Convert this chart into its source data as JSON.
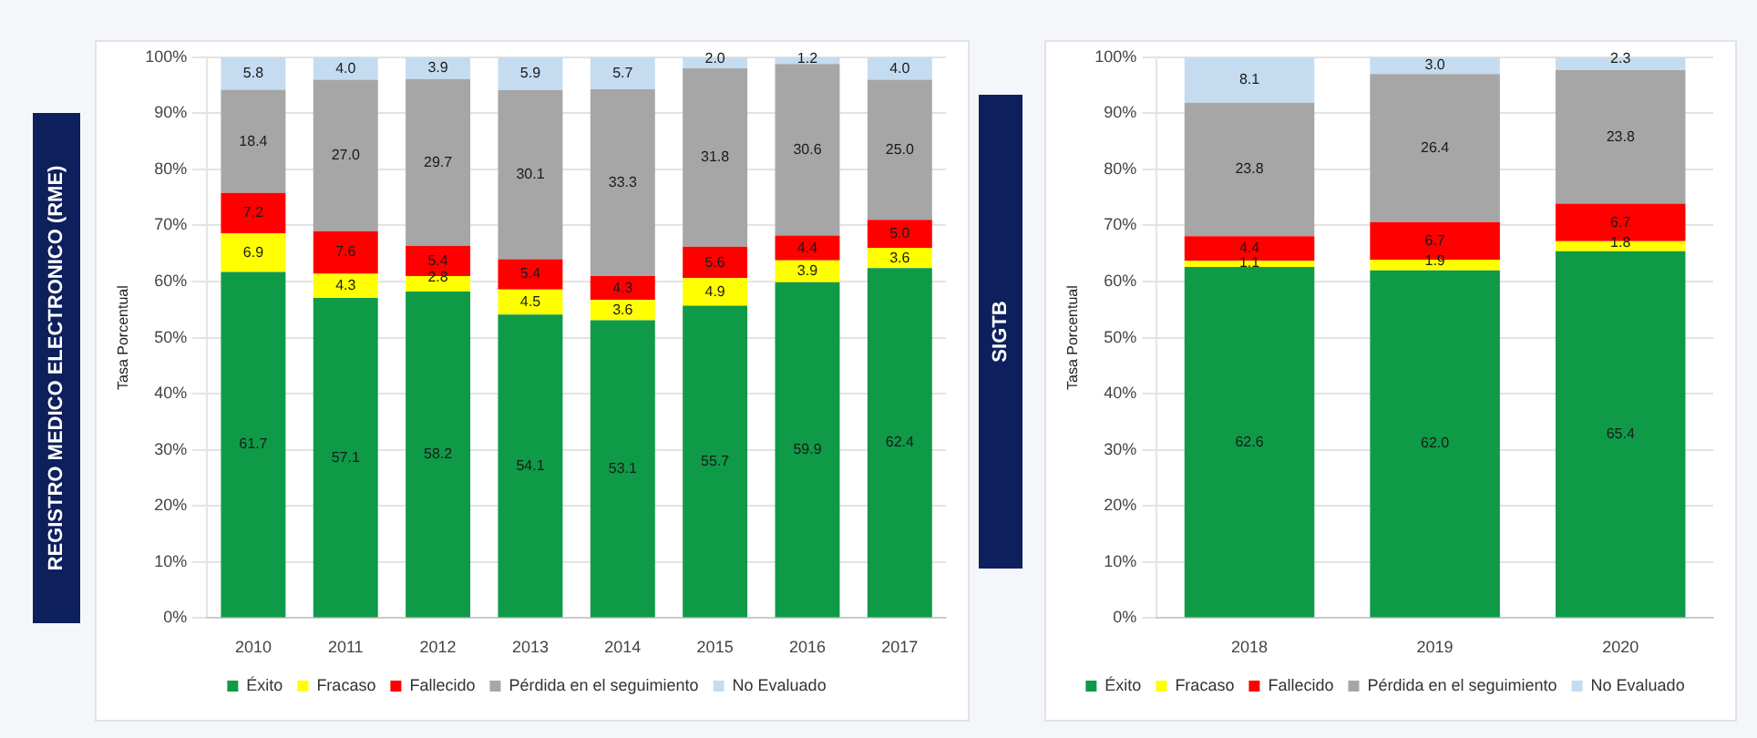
{
  "chart_data": [
    {
      "type": "bar",
      "stacked": true,
      "ylabel": "Tasa Porcentual",
      "annotations": [
        "REGISTRO MEDICO ELECTRONICO (RME)"
      ],
      "categories": [
        "2010",
        "2011",
        "2012",
        "2013",
        "2014",
        "2015",
        "2016",
        "2017"
      ],
      "series": [
        {
          "name": "Éxito",
          "color": "#0f9a48",
          "values": [
            61.7,
            57.1,
            58.2,
            54.1,
            53.1,
            55.7,
            59.9,
            62.4
          ],
          "value_labels": [
            "61.7",
            "57.1",
            "58.2",
            "54.1",
            "53.1",
            "55.7",
            "59.9",
            "62.4"
          ]
        },
        {
          "name": "Fracaso",
          "color": "#ffff00",
          "values": [
            6.9,
            4.3,
            2.8,
            4.5,
            3.6,
            4.9,
            3.9,
            3.6
          ],
          "value_labels": [
            "6.9",
            "4.3",
            "2.8",
            "4.5",
            "3.6",
            "4.9",
            "3.9",
            "3.6"
          ]
        },
        {
          "name": "Fallecido",
          "color": "#ff0000",
          "values": [
            7.2,
            7.6,
            5.4,
            5.4,
            4.3,
            5.6,
            4.4,
            5.0
          ],
          "value_labels": [
            "7.2",
            "7.6",
            "5.4",
            "5.4",
            "4.3",
            "5.6",
            "4.4",
            "5.0"
          ]
        },
        {
          "name": "Pérdida en el seguimiento",
          "color": "#a6a6a6",
          "values": [
            18.4,
            27.0,
            29.7,
            30.1,
            33.3,
            31.8,
            30.6,
            25.0
          ],
          "value_labels": [
            "18.4",
            "27.0",
            "29.7",
            "30.1",
            "33.3",
            "31.8",
            "30.6",
            "25.0"
          ]
        },
        {
          "name": "No Evaluado",
          "color": "#c5dcf0",
          "values": [
            5.8,
            4.0,
            3.9,
            5.9,
            5.7,
            2.0,
            1.2,
            4.0
          ],
          "value_labels": [
            "5.8",
            "4.0",
            "3.9",
            "5.9",
            "5.7",
            "2.0",
            "1.2",
            "4.0"
          ]
        }
      ],
      "ylim": [
        0,
        100
      ],
      "yticks": [
        {
          "value": 0,
          "label": "0%"
        },
        {
          "value": 10,
          "label": "10%"
        },
        {
          "value": 20,
          "label": "20%"
        },
        {
          "value": 30,
          "label": "30%"
        },
        {
          "value": 40,
          "label": "40%"
        },
        {
          "value": 50,
          "label": "50%"
        },
        {
          "value": 60,
          "label": "60%"
        },
        {
          "value": 70,
          "label": "70%"
        },
        {
          "value": 80,
          "label": "80%"
        },
        {
          "value": 90,
          "label": "90%"
        },
        {
          "value": 100,
          "label": "100%"
        }
      ],
      "grid": "y",
      "legend": "bottom"
    },
    {
      "type": "bar",
      "stacked": true,
      "ylabel": "Tasa Porcentual",
      "annotations": [
        "SIGTB"
      ],
      "categories": [
        "2018",
        "2019",
        "2020"
      ],
      "series": [
        {
          "name": "Éxito",
          "color": "#0f9a48",
          "values": [
            62.6,
            62.0,
            65.4
          ],
          "value_labels": [
            "62.6",
            "62.0",
            "65.4"
          ]
        },
        {
          "name": "Fracaso",
          "color": "#ffff00",
          "values": [
            1.1,
            1.9,
            1.8
          ],
          "value_labels": [
            "1.1",
            "1.9",
            "1.8"
          ]
        },
        {
          "name": "Fallecido",
          "color": "#ff0000",
          "values": [
            4.4,
            6.7,
            6.7
          ],
          "value_labels": [
            "4.4",
            "6.7",
            "6.7"
          ]
        },
        {
          "name": "Pérdida en el seguimiento",
          "color": "#a6a6a6",
          "values": [
            23.8,
            26.4,
            23.8
          ],
          "value_labels": [
            "23.8",
            "26.4",
            "23.8"
          ]
        },
        {
          "name": "No Evaluado",
          "color": "#c5dcf0",
          "values": [
            8.1,
            3.0,
            2.3
          ],
          "value_labels": [
            "8.1",
            "3.0",
            "2.3"
          ]
        }
      ],
      "ylim": [
        0,
        100
      ],
      "yticks": [
        {
          "value": 0,
          "label": "0%"
        },
        {
          "value": 10,
          "label": "10%"
        },
        {
          "value": 20,
          "label": "20%"
        },
        {
          "value": 30,
          "label": "30%"
        },
        {
          "value": 40,
          "label": "40%"
        },
        {
          "value": 50,
          "label": "50%"
        },
        {
          "value": 60,
          "label": "60%"
        },
        {
          "value": 70,
          "label": "70%"
        },
        {
          "value": 80,
          "label": "80%"
        },
        {
          "value": 90,
          "label": "90%"
        },
        {
          "value": 100,
          "label": "100%"
        }
      ],
      "grid": "y",
      "legend": "bottom"
    }
  ]
}
